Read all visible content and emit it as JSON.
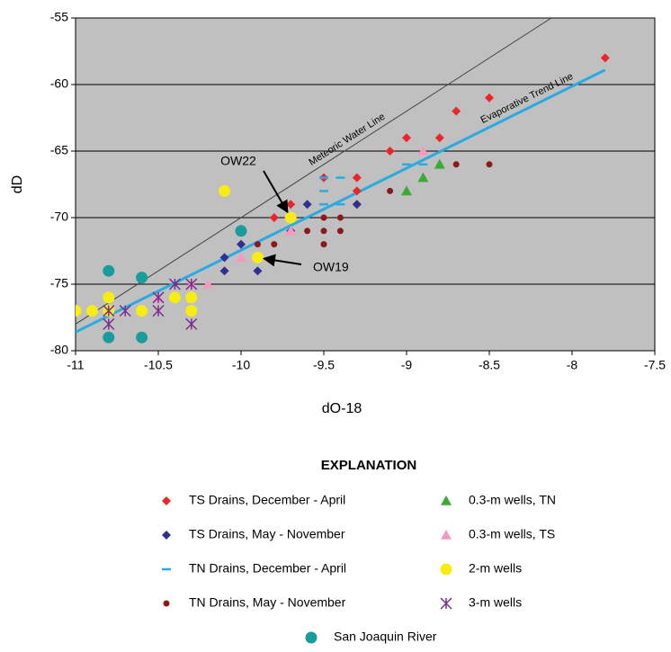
{
  "chart_data": {
    "type": "scatter",
    "x_label": "dO-18",
    "y_label": "dD",
    "xlim": [
      -11,
      -7.5
    ],
    "ylim": [
      -80,
      -55
    ],
    "xticks": [
      -11,
      -10.5,
      -10,
      -9.5,
      -9,
      -8.5,
      -8,
      -7.5
    ],
    "yticks": [
      -80,
      -75,
      -70,
      -65,
      -60,
      -55
    ],
    "grid": true,
    "legend_title": "EXPLANATION",
    "reference_lines": [
      {
        "label": "Meteoric Water Line",
        "color": "#444444",
        "x": [
          -11,
          -8.125
        ],
        "values": [
          -78,
          -55
        ]
      },
      {
        "label": "Evaporative Trend Line",
        "color": "#29abe2",
        "x": [
          -11,
          -7.8
        ],
        "values": [
          -78.6,
          -58.9
        ]
      }
    ],
    "annotations": [
      {
        "text": "OW22",
        "x": -9.7,
        "y": -70
      },
      {
        "text": "OW19",
        "x": -9.9,
        "y": -73
      }
    ],
    "series": [
      {
        "name": "TS Drains, December - April",
        "color": "#e8262b",
        "marker": "diamond",
        "x": [
          -7.8,
          -8.5,
          -8.7,
          -8.8,
          -9.0,
          -9.1,
          -9.3,
          -9.5,
          -9.3,
          -9.3,
          -9.7,
          -9.8
        ],
        "values": [
          -58,
          -61,
          -62,
          -64,
          -64,
          -65,
          -67,
          -67,
          -68,
          -69,
          -69,
          -70
        ]
      },
      {
        "name": "TS Drains, May - November",
        "color": "#2e3192",
        "marker": "diamond",
        "x": [
          -10.6,
          -10.3,
          -10.1,
          -10.1,
          -10.0,
          -9.9,
          -9.9,
          -9.7,
          -9.6,
          -9.3
        ],
        "values": [
          -79,
          -77,
          -74,
          -73,
          -72,
          -74,
          -73,
          -71,
          -69,
          -69
        ]
      },
      {
        "name": "TN Drains, December - April",
        "color": "#29abe2",
        "marker": "dash",
        "x": [
          -9.5,
          -9.4,
          -9.5,
          -9.5,
          -9.4,
          -9.0,
          -8.9,
          -10.8
        ],
        "values": [
          -67,
          -67,
          -68,
          -69,
          -69,
          -66,
          -66,
          -77
        ]
      },
      {
        "name": "TN Drains, May - November",
        "color": "#8b1a1a",
        "marker": "circle",
        "x": [
          -8.5,
          -8.7,
          -9.1,
          -9.5,
          -9.4,
          -9.4,
          -9.5,
          -9.6,
          -9.5,
          -9.8,
          -9.9
        ],
        "values": [
          -66,
          -66,
          -68,
          -70,
          -70,
          -71,
          -71,
          -71,
          -72,
          -72,
          -72
        ]
      },
      {
        "name": "0.3-m wells, TN",
        "color": "#3aaa35",
        "marker": "triangle",
        "x": [
          -8.8,
          -8.9,
          -9.0
        ],
        "values": [
          -66,
          -67,
          -68
        ]
      },
      {
        "name": "0.3-m wells, TS",
        "color": "#f49ac1",
        "marker": "triangle",
        "x": [
          -8.9,
          -9.7,
          -10.2,
          -10.3,
          -10.0,
          -10.5
        ],
        "values": [
          -65,
          -71,
          -75,
          -75,
          -73,
          -76
        ]
      },
      {
        "name": "2-m wells",
        "color": "#f7ec13",
        "marker": "bigcircle",
        "x": [
          -11.0,
          -10.9,
          -10.8,
          -10.8,
          -10.6,
          -10.4,
          -10.3,
          -10.3,
          -10.1,
          -9.7,
          -9.9
        ],
        "values": [
          -77,
          -77,
          -77,
          -76,
          -77,
          -76,
          -76,
          -77,
          -68,
          -70,
          -73
        ]
      },
      {
        "name": "3-m wells",
        "color": "#7b2d8e",
        "marker": "asterisk",
        "x": [
          -10.8,
          -10.8,
          -10.7,
          -10.5,
          -10.4,
          -10.3,
          -10.3,
          -10.5
        ],
        "values": [
          -77,
          -78,
          -77,
          -77,
          -75,
          -75,
          -78,
          -76
        ]
      },
      {
        "name": "San Joaquin River",
        "color": "#1a9c9c",
        "marker": "bigcircle",
        "x": [
          -10.8,
          -10.8,
          -10.6,
          -10.6,
          -10.0
        ],
        "values": [
          -74,
          -79,
          -74.5,
          -79,
          -71
        ]
      }
    ]
  }
}
